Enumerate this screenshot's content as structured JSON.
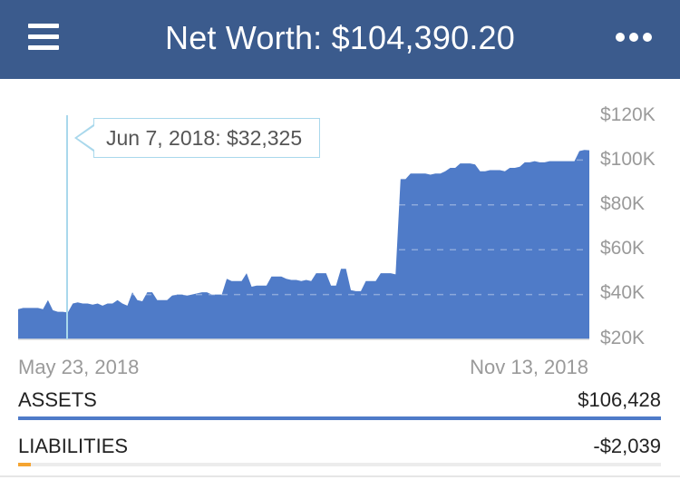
{
  "header": {
    "title": "Net Worth: $104,390.20",
    "menu_icon": "hamburger-menu-icon",
    "more_icon": "more-horizontal-icon",
    "color": "#3b5b8d"
  },
  "tooltip": {
    "text": "Jun 7, 2018: $32,325"
  },
  "chart_data": {
    "type": "area",
    "title": "",
    "xlabel": "",
    "ylabel": "",
    "ylim": [
      20000,
      120000
    ],
    "y_ticks": [
      "$120K",
      "$100K",
      "$80K",
      "$60K",
      "$40K",
      "$20K"
    ],
    "y_tick_values": [
      120000,
      100000,
      80000,
      60000,
      40000,
      20000
    ],
    "x_ticks": [
      "May 23, 2018",
      "Nov 13, 2018"
    ],
    "x_range": [
      "2018-05-23",
      "2018-11-13"
    ],
    "color": "#4f7bc8",
    "grid": "horizontal dashed",
    "series": [
      {
        "values": [
          33500,
          34000,
          34000,
          34000,
          34000,
          33500,
          37500,
          33000,
          32325,
          32325,
          32000,
          36000,
          36500,
          36000,
          36000,
          35500,
          36000,
          35000,
          36000,
          36000,
          37500,
          36000,
          35000,
          41000,
          37500,
          37000,
          41000,
          41000,
          37500,
          37500,
          37500,
          39500,
          40000,
          40000,
          39500,
          40000,
          40500,
          41000,
          41000,
          40000,
          40000,
          40000,
          47000,
          46000,
          46000,
          46000,
          49500,
          43500,
          44000,
          44000,
          44000,
          48000,
          48000,
          48000,
          47000,
          46500,
          46500,
          46000,
          46500,
          46000,
          49500,
          49500,
          49500,
          44000,
          44000,
          51500,
          51500,
          42000,
          41500,
          41500,
          46000,
          46000,
          46000,
          49500,
          49500,
          49500,
          49000,
          91500,
          91500,
          94000,
          94000,
          94000,
          94000,
          93500,
          94000,
          94000,
          95000,
          96500,
          96500,
          98500,
          98500,
          98500,
          98000,
          95000,
          95000,
          95500,
          95500,
          95500,
          95000,
          96500,
          96500,
          97000,
          99000,
          99000,
          99500,
          99000,
          99000,
          99500,
          99500,
          99500,
          99500,
          99500,
          99500,
          104000,
          104500,
          104390
        ]
      }
    ]
  },
  "assets": {
    "label": "ASSETS",
    "value": "$106,428",
    "fraction": 1.0,
    "color": "#4f7bc8"
  },
  "liabilities": {
    "label": "LIABILITIES",
    "value": "-$2,039",
    "fraction": 0.0192,
    "color": "#f5a431"
  }
}
